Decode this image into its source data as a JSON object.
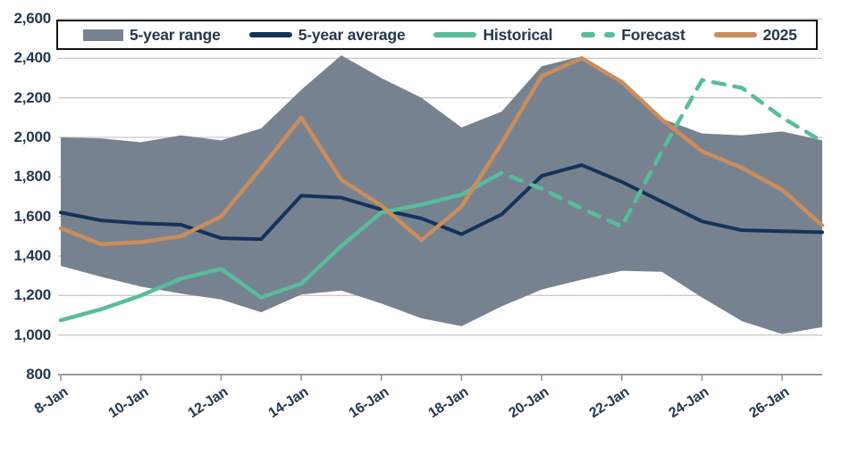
{
  "colors": {
    "background": "#FFFFFF",
    "band": "#76828F",
    "average_line": "#14335B",
    "historical_line": "#58BD9D",
    "forecast_line": "#58BD9D",
    "line_2025": "#CB8D5D",
    "grid": "#CBCBCB",
    "axis": "#969A9E",
    "text": "#24384E",
    "legend_border": "#141414"
  },
  "legend": {
    "items": [
      {
        "label": "5-year range",
        "swatch": "band",
        "color": "#76828F"
      },
      {
        "label": "5-year average",
        "swatch": "line",
        "color": "#14335B"
      },
      {
        "label": "Historical",
        "swatch": "line",
        "color": "#58BD9D"
      },
      {
        "label": "Forecast",
        "swatch": "dashes",
        "color": "#58BD9D"
      },
      {
        "label": "2025",
        "swatch": "line",
        "color": "#CB8D5D"
      }
    ]
  },
  "chart_data": {
    "type": "line",
    "title": "",
    "xlabel": "",
    "ylabel": "",
    "grid": "horizontal",
    "legend_position": "top",
    "ylim": [
      800,
      2600
    ],
    "ytick_step": 200,
    "yticks": [
      {
        "value": 800,
        "label": "800"
      },
      {
        "value": 1000,
        "label": "1,000"
      },
      {
        "value": 1200,
        "label": "1,200"
      },
      {
        "value": 1400,
        "label": "1,400"
      },
      {
        "value": 1600,
        "label": "1,600"
      },
      {
        "value": 1800,
        "label": "1,800"
      },
      {
        "value": 2000,
        "label": "2,000"
      },
      {
        "value": 2200,
        "label": "2,200"
      },
      {
        "value": 2400,
        "label": "2,400"
      },
      {
        "value": 2600,
        "label": "2,600"
      }
    ],
    "dates": [
      "8-Jan",
      "9-Jan",
      "10-Jan",
      "11-Jan",
      "12-Jan",
      "13-Jan",
      "14-Jan",
      "15-Jan",
      "16-Jan",
      "17-Jan",
      "18-Jan",
      "19-Jan",
      "20-Jan",
      "21-Jan",
      "22-Jan",
      "23-Jan",
      "24-Jan",
      "25-Jan",
      "26-Jan",
      "27-Jan"
    ],
    "x_labeled_tick_indices": [
      0,
      2,
      4,
      6,
      8,
      10,
      12,
      14,
      16,
      18
    ],
    "series": [
      {
        "name": "5-year range",
        "type": "band",
        "color": "#76828F",
        "high": [
          2000,
          1995,
          1975,
          2010,
          1985,
          2045,
          2240,
          2415,
          2300,
          2200,
          2050,
          2130,
          2360,
          2410,
          2270,
          2095,
          2020,
          2010,
          2030,
          1985
        ],
        "low": [
          1350,
          1295,
          1245,
          1210,
          1180,
          1115,
          1205,
          1225,
          1160,
          1085,
          1045,
          1145,
          1230,
          1280,
          1325,
          1320,
          1190,
          1070,
          1005,
          1040
        ]
      },
      {
        "name": "5-year average",
        "type": "line",
        "color": "#14335B",
        "values": [
          1620,
          1580,
          1565,
          1558,
          1490,
          1485,
          1705,
          1695,
          1635,
          1590,
          1510,
          1610,
          1805,
          1860,
          1775,
          1675,
          1575,
          1530,
          1525,
          1520
        ]
      },
      {
        "name": "Historical",
        "type": "line",
        "color": "#58BD9D",
        "start_index": 0,
        "values": [
          1075,
          1130,
          1200,
          1285,
          1335,
          1190,
          1260,
          1450,
          1620,
          1660,
          1710,
          1820
        ]
      },
      {
        "name": "Forecast",
        "type": "line-dashed",
        "color": "#58BD9D",
        "start_index": 11,
        "values": [
          1820,
          1740,
          1640,
          1550,
          1930,
          2290,
          2250,
          2100,
          1980
        ]
      },
      {
        "name": "2025",
        "type": "line",
        "color": "#CB8D5D",
        "values": [
          1540,
          1460,
          1470,
          1500,
          1600,
          1845,
          2100,
          1785,
          1655,
          1480,
          1650,
          1970,
          2310,
          2400,
          2280,
          2090,
          1930,
          1845,
          1735,
          1555
        ]
      }
    ]
  }
}
